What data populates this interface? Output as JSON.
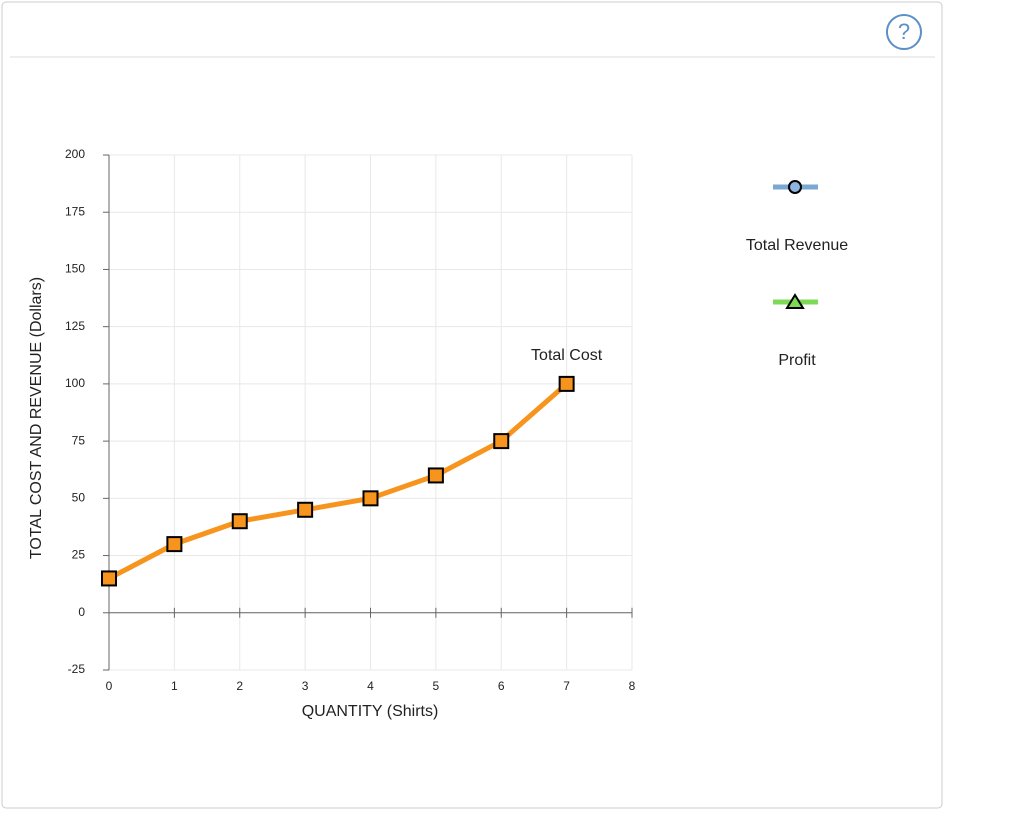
{
  "help_button": "?",
  "chart_data": {
    "type": "line",
    "x_label": "QUANTITY (Shirts)",
    "y_label": "TOTAL COST AND REVENUE (Dollars)",
    "x": [
      0,
      1,
      2,
      3,
      4,
      5,
      6,
      7
    ],
    "series": [
      {
        "name": "Total Cost",
        "color": "#f7941d",
        "marker": "square",
        "values": [
          15,
          30,
          40,
          45,
          50,
          60,
          75,
          100
        ]
      },
      {
        "name": "Total Revenue",
        "color": "#7aa7d3",
        "marker": "circle",
        "values": [
          null,
          null,
          null,
          null,
          null,
          null,
          null,
          null
        ]
      },
      {
        "name": "Profit",
        "color": "#7ed957",
        "marker": "triangle",
        "values": [
          null,
          null,
          null,
          null,
          null,
          null,
          null,
          null
        ]
      }
    ],
    "xlim": [
      0,
      8
    ],
    "xticks": [
      0,
      1,
      2,
      3,
      4,
      5,
      6,
      7,
      8
    ],
    "ylim": [
      -25,
      200
    ],
    "yticks": [
      -25,
      0,
      25,
      50,
      75,
      100,
      125,
      150,
      175,
      200
    ],
    "grid": true
  }
}
